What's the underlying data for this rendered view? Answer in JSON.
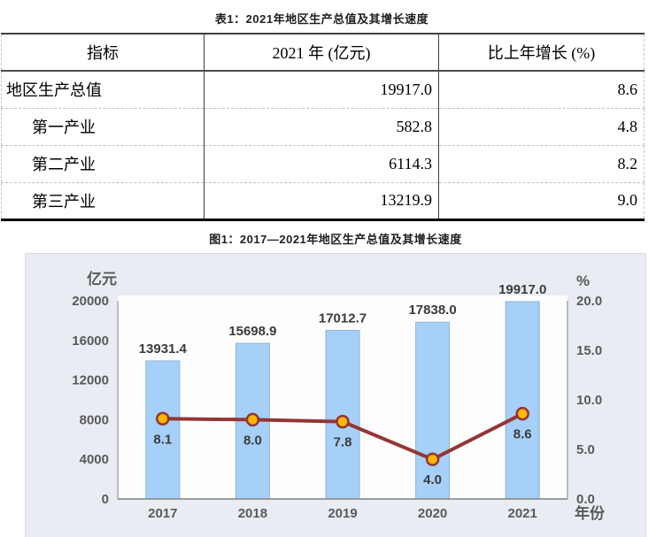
{
  "table": {
    "title": "表1：2021年地区生产总值及其增长速度",
    "columns": [
      "指标",
      "2021 年 (亿元)",
      "比上年增长 (%)"
    ],
    "rows": [
      {
        "indicator": "地区生产总值",
        "value": "19917.0",
        "growth": "8.6"
      },
      {
        "indicator": "第一产业",
        "value": "582.8",
        "growth": "4.8"
      },
      {
        "indicator": "第二产业",
        "value": "6114.3",
        "growth": "8.2"
      },
      {
        "indicator": "第三产业",
        "value": "13219.9",
        "growth": "9.0"
      }
    ]
  },
  "figure": {
    "title": "图1：2017—2021年地区生产总值及其增长速度"
  },
  "chart_data": {
    "type": "bar+line",
    "title": "图1：2017—2021年地区生产总值及其增长速度",
    "categories": [
      "2017",
      "2018",
      "2019",
      "2020",
      "2021"
    ],
    "series": [
      {
        "name": "地区生产总值",
        "type": "bar",
        "unit": "亿元",
        "values": [
          13931.4,
          15698.9,
          17012.7,
          17838.0,
          19917.0
        ]
      },
      {
        "name": "比上年增长",
        "type": "line",
        "unit": "%",
        "values": [
          8.1,
          8.0,
          7.8,
          4.0,
          8.6
        ]
      }
    ],
    "left_axis": {
      "label": "亿元",
      "min": 0,
      "max": 20000,
      "step": 4000,
      "ticks": [
        "0",
        "4000",
        "8000",
        "12000",
        "16000",
        "20000"
      ]
    },
    "right_axis": {
      "label": "%",
      "min": 0,
      "max": 20,
      "step": 5,
      "ticks": [
        "0.0",
        "5.0",
        "10.0",
        "15.0",
        "20.0"
      ]
    },
    "x_axis_label": "年份",
    "grid": false,
    "legend": "none",
    "colors": {
      "bar_fill": "#a6d0f7",
      "bar_stroke": "#8cb4d6",
      "line": "#943634",
      "marker_fill": "#ffb602",
      "marker_stroke": "#943634",
      "plot_bg": "#fdfdfe",
      "chart_bg": "#e9edf3",
      "axis": "#a3a3a3",
      "tick_text": "#595959",
      "data_label": "#3b3b3b"
    }
  }
}
